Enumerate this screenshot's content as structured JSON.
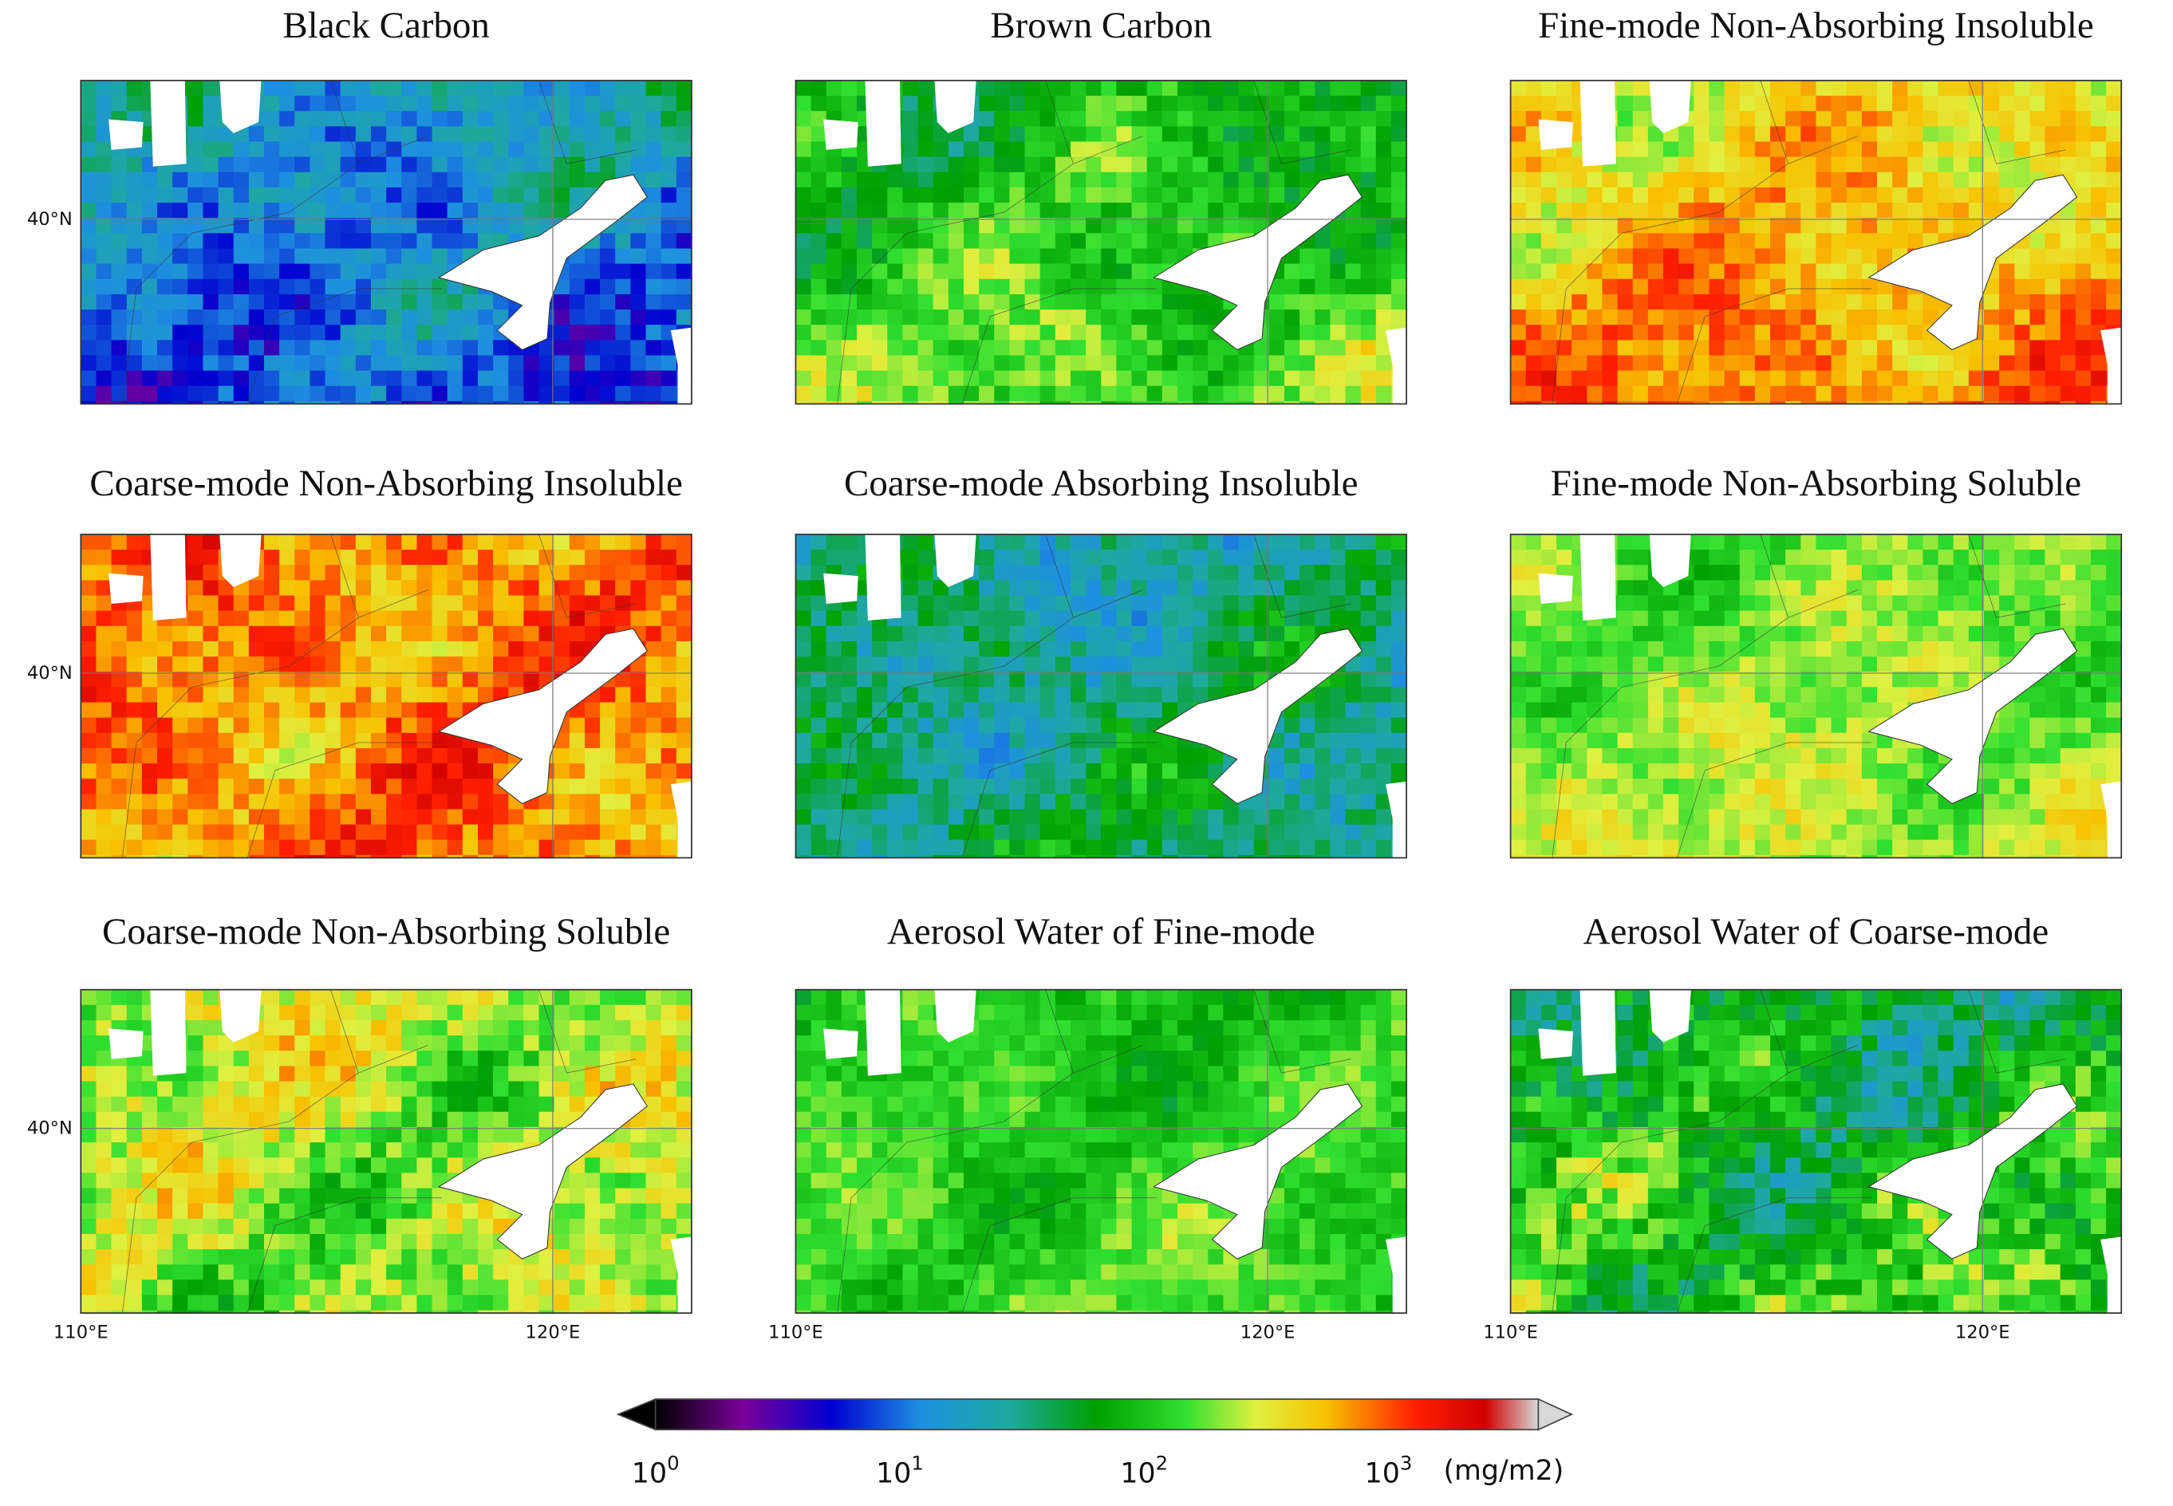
{
  "panels": [
    {
      "title": "Black Carbon"
    },
    {
      "title": "Brown Carbon"
    },
    {
      "title": "Fine-mode Non-Absorbing Insoluble"
    },
    {
      "title": "Coarse-mode Non-Absorbing Insoluble"
    },
    {
      "title": "Coarse-mode Absorbing Insoluble"
    },
    {
      "title": "Fine-mode Non-Absorbing Soluble"
    },
    {
      "title": "Coarse-mode Non-Absorbing Soluble"
    },
    {
      "title": "Aerosol Water of Fine-mode"
    },
    {
      "title": "Aerosol Water of Coarse-mode"
    }
  ],
  "axes": {
    "lat_label": "40°N",
    "lon_labels": [
      "110°E",
      "120°E"
    ]
  },
  "colorbar": {
    "ticks": [
      {
        "base": "10",
        "exponent": "0"
      },
      {
        "base": "10",
        "exponent": "1"
      },
      {
        "base": "10",
        "exponent": "2"
      },
      {
        "base": "10",
        "exponent": "3"
      }
    ],
    "unit": "(mg/m2)"
  }
}
